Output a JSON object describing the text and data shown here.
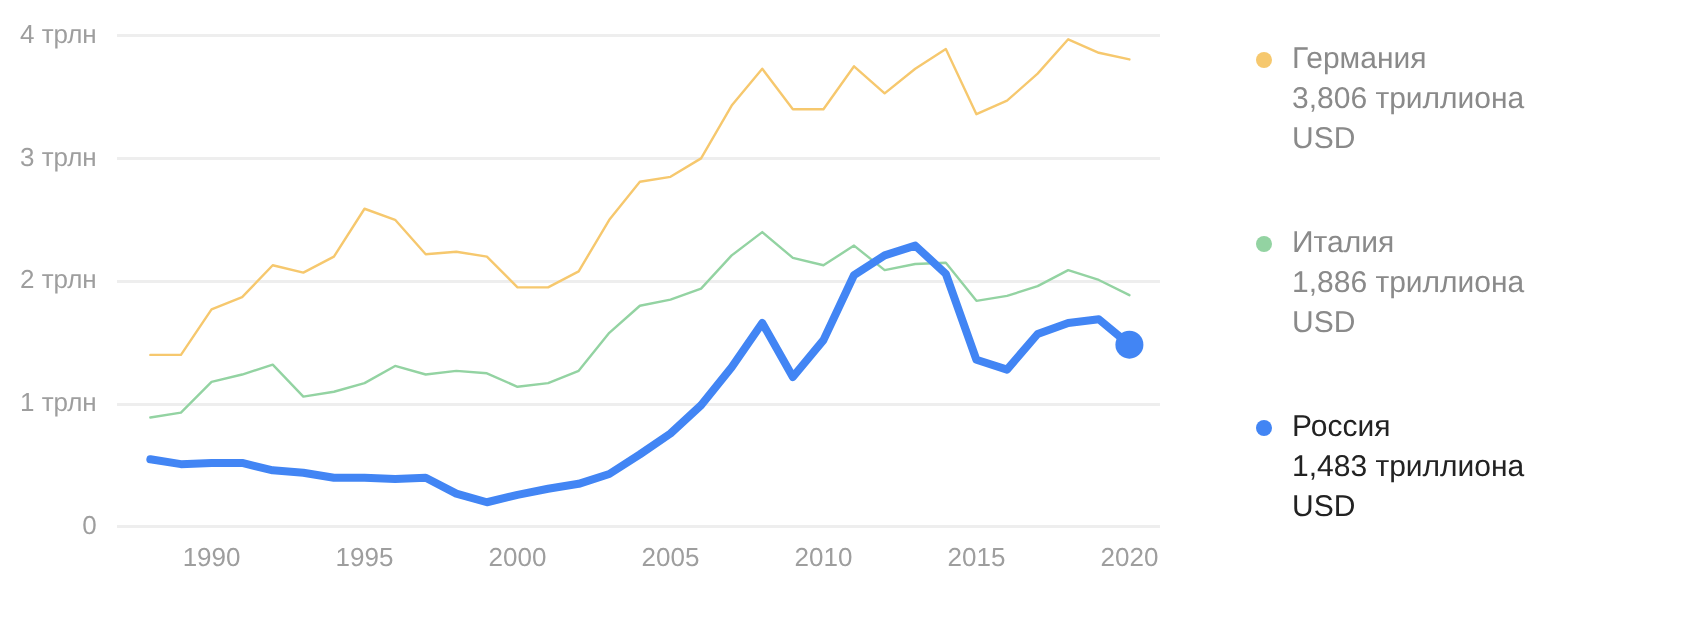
{
  "chart_data": {
    "type": "line",
    "x": [
      1988,
      1989,
      1990,
      1991,
      1992,
      1993,
      1994,
      1995,
      1996,
      1997,
      1998,
      1999,
      2000,
      2001,
      2002,
      2003,
      2004,
      2005,
      2006,
      2007,
      2008,
      2009,
      2010,
      2011,
      2012,
      2013,
      2014,
      2015,
      2016,
      2017,
      2018,
      2019,
      2020
    ],
    "series": [
      {
        "name": "Германия",
        "color": "#f6c86e",
        "values": [
          1.4,
          1.4,
          1.77,
          1.87,
          2.13,
          2.07,
          2.2,
          2.59,
          2.5,
          2.22,
          2.24,
          2.2,
          1.95,
          1.95,
          2.08,
          2.5,
          2.81,
          2.85,
          3.0,
          3.43,
          3.73,
          3.4,
          3.4,
          3.75,
          3.53,
          3.73,
          3.89,
          3.36,
          3.47,
          3.69,
          3.97,
          3.86,
          3.806
        ]
      },
      {
        "name": "Италия",
        "color": "#93d3a2",
        "values": [
          0.89,
          0.93,
          1.18,
          1.24,
          1.32,
          1.06,
          1.1,
          1.17,
          1.31,
          1.24,
          1.27,
          1.25,
          1.14,
          1.17,
          1.27,
          1.58,
          1.8,
          1.85,
          1.94,
          2.21,
          2.4,
          2.19,
          2.13,
          2.29,
          2.09,
          2.14,
          2.15,
          1.84,
          1.88,
          1.96,
          2.09,
          2.01,
          1.886
        ]
      },
      {
        "name": "Россия",
        "color": "#4285f4",
        "values": [
          0.55,
          0.51,
          0.52,
          0.52,
          0.46,
          0.44,
          0.4,
          0.4,
          0.39,
          0.4,
          0.27,
          0.2,
          0.26,
          0.31,
          0.35,
          0.43,
          0.59,
          0.76,
          0.99,
          1.3,
          1.66,
          1.22,
          1.52,
          2.05,
          2.21,
          2.29,
          2.06,
          1.36,
          1.28,
          1.57,
          1.66,
          1.69,
          1.483
        ]
      }
    ],
    "xlim": [
      1986.9,
      2021
    ],
    "xticks": [
      1990,
      1995,
      2000,
      2005,
      2010,
      2015,
      2020
    ],
    "ylim": [
      0,
      4
    ],
    "yticks": [
      0,
      {
        "value": 1,
        "label": "1 трлн"
      },
      {
        "value": 2,
        "label": "2 трлн"
      },
      {
        "value": 3,
        "label": "3 трлн"
      },
      {
        "value": 4,
        "label": "4 трлн"
      }
    ],
    "annotations": [
      "3,806 триллиона USD",
      "1,886 триллиона USD",
      "1,483 триллиона USD"
    ],
    "grid": "y",
    "legend": "right",
    "marker": "none",
    "line_style": "solid"
  }
}
